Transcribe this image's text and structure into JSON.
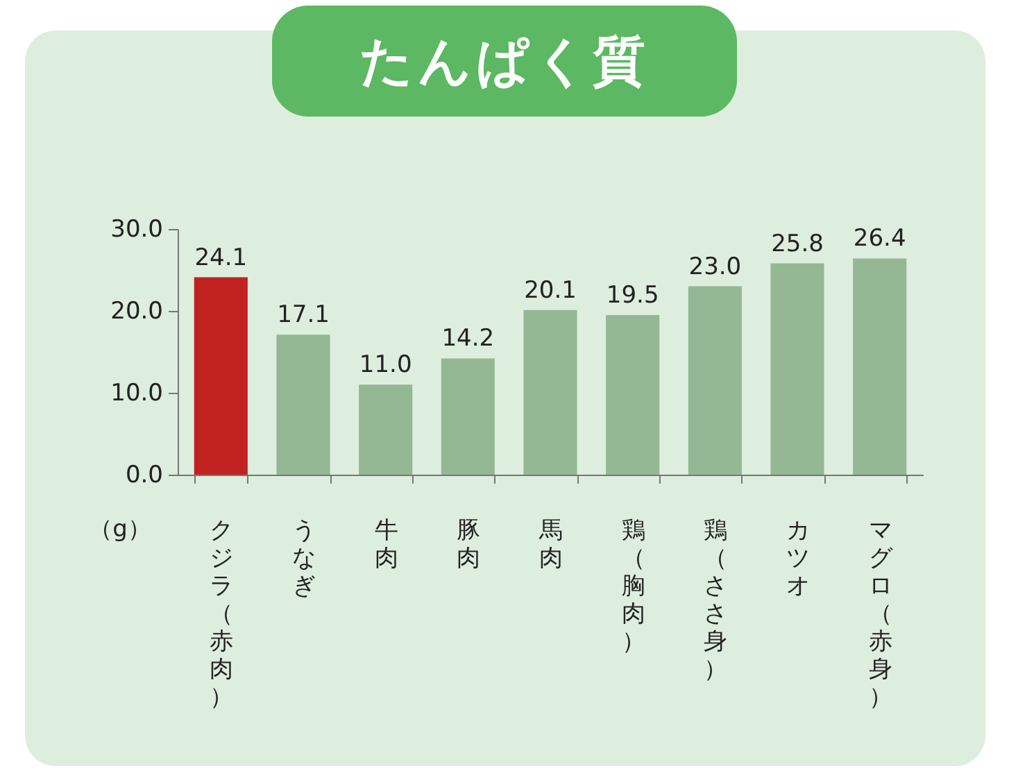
{
  "chart_data": {
    "type": "bar",
    "title": "たんぱく質",
    "ylabel": "（g）",
    "categories": [
      "クジラ（赤肉）",
      "うなぎ",
      "牛肉",
      "豚肉",
      "馬肉",
      "鶏（胸肉）",
      "鶏（ささ身）",
      "カツオ",
      "マグロ（赤身）"
    ],
    "values": [
      24.1,
      17.1,
      11.0,
      14.2,
      20.1,
      19.5,
      23.0,
      25.8,
      26.4
    ],
    "colors": [
      "#c0231f",
      "#93b893",
      "#93b893",
      "#93b893",
      "#93b893",
      "#93b893",
      "#93b893",
      "#93b893",
      "#93b893"
    ],
    "ylim": [
      0,
      30
    ],
    "yticks": [
      {
        "value": 0,
        "label": "0.0"
      },
      {
        "value": 10,
        "label": "10.0"
      },
      {
        "value": 20,
        "label": "20.0"
      },
      {
        "value": 30,
        "label": "30.0"
      }
    ],
    "value_labels": [
      "24.1",
      "17.1",
      "11.0",
      "14.2",
      "20.1",
      "19.5",
      "23.0",
      "25.8",
      "26.4"
    ],
    "grid": false
  }
}
